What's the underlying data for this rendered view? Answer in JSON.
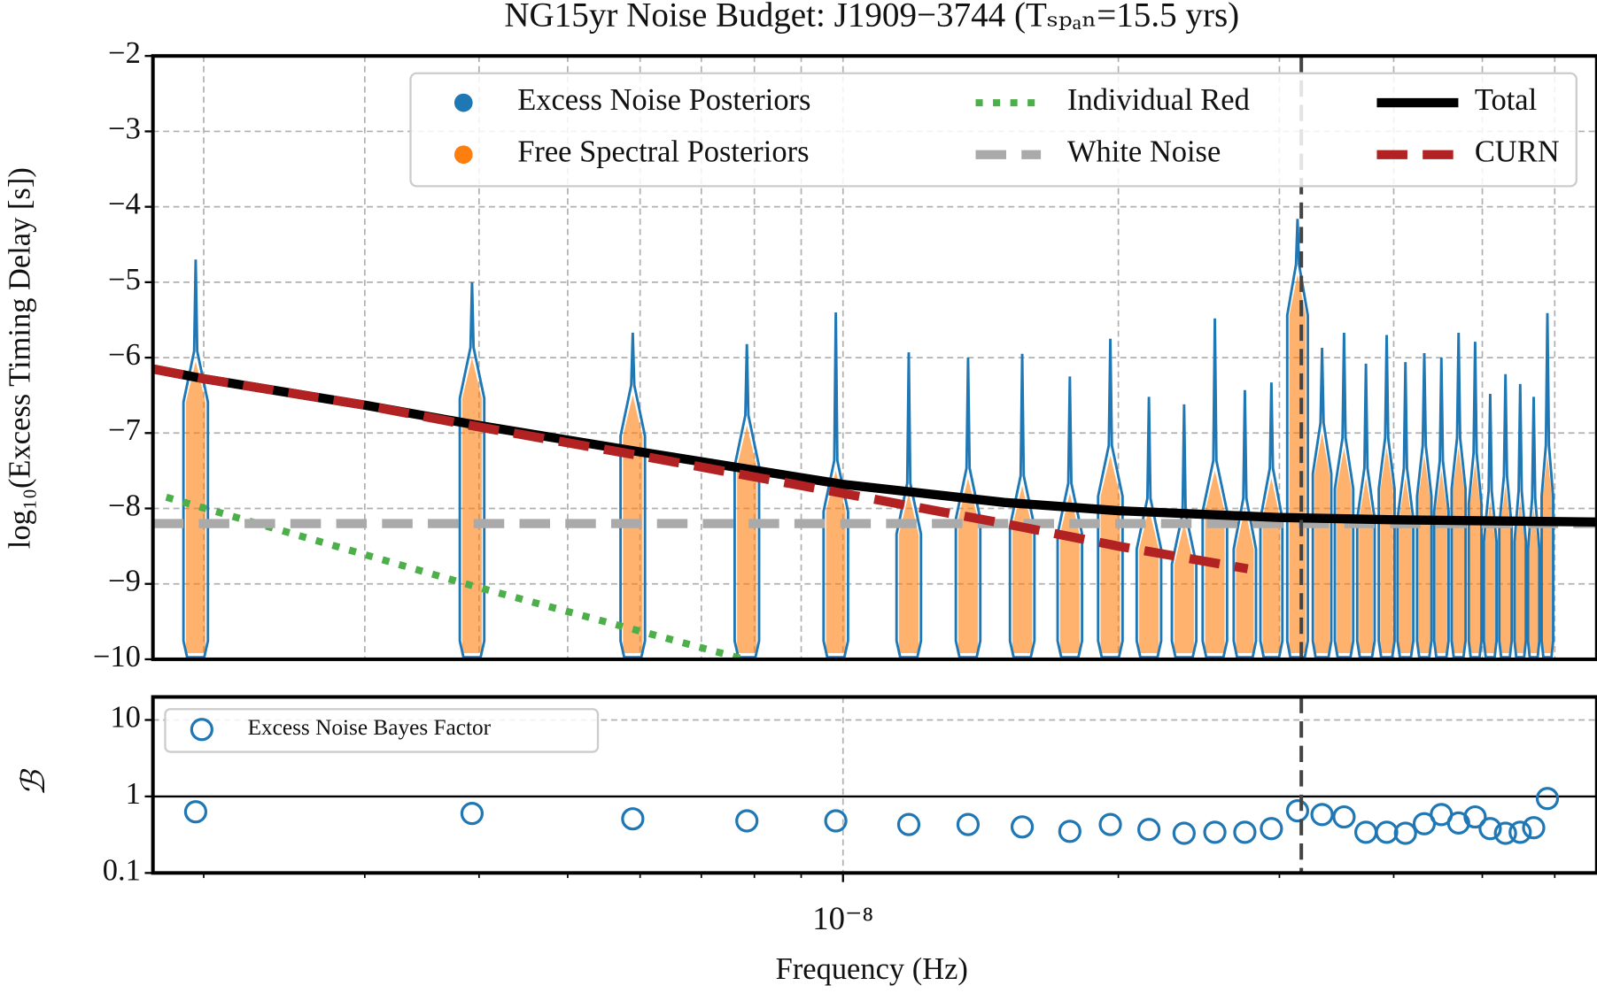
{
  "chart_data": [
    {
      "type": "violin",
      "title": "NG15yr Noise Budget: J1909−3744 (Tₛₚₐₙ=15.5 yrs)",
      "ylabel": "log₁₀(Excess Timing Delay [s])",
      "xscale": "log",
      "xlim": [
        1.76e-09,
        6.67e-08
      ],
      "xminorticks": [
        2e-09,
        3e-09,
        4e-09,
        5e-09,
        6e-09,
        7e-09,
        8e-09,
        9e-09,
        1e-08,
        2e-08,
        3e-08,
        4e-08,
        5e-08,
        6e-08
      ],
      "minor_grid": true,
      "ylim": [
        -10,
        -2
      ],
      "yticks": [
        {
          "value": -10,
          "label": "−10"
        },
        {
          "value": -9,
          "label": "−9"
        },
        {
          "value": -8,
          "label": "−8"
        },
        {
          "value": -7,
          "label": "−7"
        },
        {
          "value": -6,
          "label": "−6"
        },
        {
          "value": -5,
          "label": "−5"
        },
        {
          "value": -4,
          "label": "−4"
        },
        {
          "value": -3,
          "label": "−3"
        },
        {
          "value": -2,
          "label": "−2"
        }
      ],
      "grid": true,
      "legend": "upper right",
      "x": [
        1.96e-09,
        3.93e-09,
        5.89e-09,
        7.85e-09,
        9.82e-09,
        1.18e-08,
        1.37e-08,
        1.57e-08,
        1.77e-08,
        1.96e-08,
        2.16e-08,
        2.36e-08,
        2.55e-08,
        2.75e-08,
        2.94e-08,
        3.14e-08,
        3.34e-08,
        3.53e-08,
        3.73e-08,
        3.93e-08,
        4.12e-08,
        4.32e-08,
        4.51e-08,
        4.71e-08,
        4.91e-08,
        5.1e-08,
        5.3e-08,
        5.5e-08,
        5.69e-08,
        5.89e-08
      ],
      "series": [
        {
          "name": "Excess Noise Posteriors",
          "color": "#1f77b4",
          "values": [
            -4.7,
            -5.0,
            -5.67,
            -5.82,
            -5.4,
            -5.93,
            -6.0,
            -5.95,
            -6.25,
            -5.75,
            -6.52,
            -6.62,
            -5.48,
            -6.43,
            -6.33,
            -4.16,
            -5.87,
            -5.67,
            -6.08,
            -5.7,
            -6.06,
            -5.94,
            -6.0,
            -5.67,
            -5.79,
            -6.48,
            -6.22,
            -6.35,
            -6.52,
            -5.41
          ]
        },
        {
          "name": "Free Spectral Posteriors",
          "color": "#ff7f0e",
          "values": [
            -6.05,
            -6.0,
            -6.5,
            -6.9,
            -7.5,
            -7.8,
            -7.6,
            -7.7,
            -7.8,
            -7.3,
            -8.0,
            -8.2,
            -7.5,
            -8.0,
            -7.6,
            -4.9,
            -7.0,
            -7.2,
            -7.6,
            -7.2,
            -7.6,
            -7.3,
            -7.5,
            -7.2,
            -7.4,
            -7.9,
            -7.7,
            -7.9,
            -8.0,
            -7.3
          ]
        }
      ],
      "lines": [
        {
          "name": "Individual Red",
          "color": "#4daf4a",
          "style": "dotted",
          "x": [
            1.82e-09,
            4e-09,
            7.8e-09
          ],
          "values": [
            -7.85,
            -9.05,
            -10.0
          ]
        },
        {
          "name": "White Noise",
          "color": "#aaaaaa",
          "style": "dashed",
          "x": [
            1.76e-09,
            6.67e-08
          ],
          "values": [
            -8.2,
            -8.2
          ]
        },
        {
          "name": "Total",
          "color": "#000000",
          "style": "solid",
          "x": [
            1.76e-09,
            2e-09,
            3e-09,
            4e-09,
            6e-09,
            1e-08,
            1.5e-08,
            2e-08,
            3e-08,
            4e-08,
            6.67e-08
          ],
          "values": [
            -6.15,
            -6.28,
            -6.63,
            -6.9,
            -7.25,
            -7.68,
            -7.92,
            -8.03,
            -8.12,
            -8.15,
            -8.18
          ]
        },
        {
          "name": "CURN",
          "color": "#b22222",
          "style": "dashed",
          "x": [
            1.76e-09,
            2e-09,
            3e-09,
            4e-09,
            6e-09,
            1e-08,
            1.5e-08,
            2e-08,
            2.77e-08
          ],
          "values": [
            -6.15,
            -6.28,
            -6.63,
            -6.92,
            -7.3,
            -7.8,
            -8.2,
            -8.5,
            -8.8
          ]
        }
      ],
      "vline": 3.17e-08
    },
    {
      "type": "scatter",
      "ylabel": "ℬ",
      "xlabel": "Frequency (Hz)",
      "xscale": "log",
      "xlim": [
        1.76e-09,
        6.67e-08
      ],
      "xticks": [
        {
          "value": 1e-08,
          "label": "10⁻⁸"
        }
      ],
      "xminorticks": [
        2e-09,
        3e-09,
        4e-09,
        5e-09,
        6e-09,
        7e-09,
        8e-09,
        9e-09,
        2e-08,
        3e-08,
        4e-08,
        5e-08,
        6e-08
      ],
      "minor_grid": false,
      "yscale": "log",
      "ylim": [
        0.1,
        20
      ],
      "yticks": [
        0.1,
        1,
        10
      ],
      "grid": true,
      "hline": 1,
      "vline": 3.17e-08,
      "legend": "upper left",
      "x": [
        1.96e-09,
        3.93e-09,
        5.89e-09,
        7.85e-09,
        9.82e-09,
        1.18e-08,
        1.37e-08,
        1.57e-08,
        1.77e-08,
        1.96e-08,
        2.16e-08,
        2.36e-08,
        2.55e-08,
        2.75e-08,
        2.94e-08,
        3.14e-08,
        3.34e-08,
        3.53e-08,
        3.73e-08,
        3.93e-08,
        4.12e-08,
        4.32e-08,
        4.51e-08,
        4.71e-08,
        4.91e-08,
        5.1e-08,
        5.3e-08,
        5.5e-08,
        5.69e-08,
        5.89e-08
      ],
      "series": [
        {
          "name": "Excess Noise Bayes Factor",
          "color": "#1f77b4",
          "values": [
            0.63,
            0.6,
            0.51,
            0.48,
            0.48,
            0.43,
            0.43,
            0.4,
            0.35,
            0.43,
            0.37,
            0.33,
            0.34,
            0.34,
            0.38,
            0.65,
            0.58,
            0.54,
            0.34,
            0.34,
            0.33,
            0.44,
            0.58,
            0.45,
            0.54,
            0.38,
            0.33,
            0.34,
            0.39,
            0.94
          ]
        }
      ]
    }
  ]
}
